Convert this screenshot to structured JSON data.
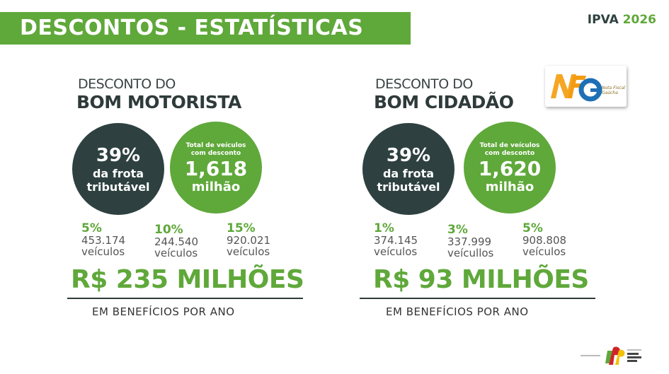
{
  "header": {
    "title": "DESCONTOS - ESTATÍSTICAS",
    "badge_prefix": "IPVA",
    "badge_year": "2026"
  },
  "colors": {
    "green": "#5fa83a",
    "dark": "#2e4140"
  },
  "sections": [
    {
      "subtitle": "DESCONTO DO",
      "title": "BOM MOTORISTA",
      "fleet_pct": "39%",
      "fleet_label1": "da frota",
      "fleet_label2": "tributável",
      "total_label1": "Total de veículos",
      "total_label2": "com desconto",
      "total_value": "1,618",
      "total_unit": "milhão",
      "stats": [
        {
          "pct": "5%",
          "count": "453.174",
          "unit": "veículos"
        },
        {
          "pct": "10%",
          "count": "244.540",
          "unit": "veículos"
        },
        {
          "pct": "15%",
          "count": "920.021",
          "unit": "veículos"
        }
      ],
      "amount": "R$ 235 MILHÕES",
      "benefit": "EM BENEFÍCIOS POR ANO"
    },
    {
      "subtitle": "DESCONTO DO",
      "title": "BOM CIDADÃO",
      "fleet_pct": "39%",
      "fleet_label1": "da frota",
      "fleet_label2": "tributável",
      "total_label1": "Total de veículos",
      "total_label2": "com desconto",
      "total_value": "1,620",
      "total_unit": "milhão",
      "stats": [
        {
          "pct": "1%",
          "count": "374.145",
          "unit": "veículos"
        },
        {
          "pct": "3%",
          "count": "337.999",
          "unit": "veícullos"
        },
        {
          "pct": "5%",
          "count": "908.808",
          "unit": "veículos"
        }
      ],
      "amount": "R$ 93 MILHÕES",
      "benefit": "EM BENEFÍCIOS POR ANO"
    }
  ],
  "logos": {
    "nfg": "NFG Nota Fiscal Gaúcha",
    "footer": "Secretaria da Fazenda Rio Grande do Sul"
  }
}
